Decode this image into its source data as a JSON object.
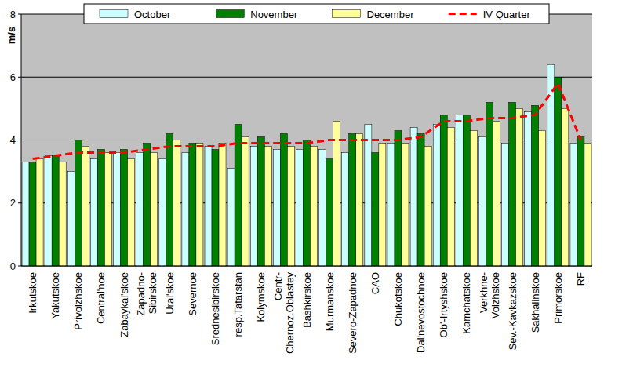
{
  "chart_data": {
    "type": "bar",
    "y_label": "m/s",
    "categories": [
      "Irkutskoe",
      "Yakutskoe",
      "Privolzhskoe",
      "Central'noe",
      "Zabaykal'skoe",
      "Zapadno-Sibirskoe",
      "Ural'skoe",
      "Severnoe",
      "Srednesibirskoe",
      "resp.Tatarstan",
      "Kolymskoe",
      "Centr-Chernoz.Oblastey",
      "Bashkirskoe",
      "Murmanskoe",
      "Severo-Zapadnoe",
      "CAO",
      "Chukotskoe",
      "Dal'nevostochnoe",
      "Ob'-Irtyshskoe",
      "Kamchatskoe",
      "Verkhne-Volzhskoe",
      "Sev.-Kavkazskoe",
      "Sakhalinskoe",
      "Primorskoe",
      "RF"
    ],
    "series": [
      {
        "name": "October",
        "type": "bar",
        "color": "#ccffff",
        "values": [
          3.3,
          3.5,
          3.0,
          3.4,
          3.6,
          3.6,
          3.4,
          3.6,
          3.8,
          3.1,
          3.8,
          3.7,
          3.7,
          3.7,
          3.6,
          4.5,
          3.9,
          4.4,
          4.5,
          4.8,
          4.1,
          3.9,
          4.9,
          6.4,
          3.9
        ]
      },
      {
        "name": "November",
        "type": "bar",
        "color": "#008000",
        "values": [
          3.3,
          3.5,
          4.0,
          3.7,
          3.7,
          3.9,
          4.2,
          3.9,
          3.7,
          4.5,
          4.1,
          4.2,
          4.0,
          3.4,
          4.2,
          3.6,
          4.3,
          4.2,
          4.8,
          4.8,
          5.2,
          5.2,
          5.1,
          6.0,
          4.1
        ]
      },
      {
        "name": "December",
        "type": "bar",
        "color": "#ffff99",
        "values": [
          3.4,
          3.3,
          3.8,
          3.6,
          3.4,
          3.6,
          4.0,
          3.9,
          3.9,
          4.1,
          3.8,
          3.8,
          3.8,
          4.6,
          4.2,
          3.9,
          3.9,
          3.8,
          4.4,
          4.3,
          4.6,
          5.0,
          4.3,
          5.0,
          3.9
        ]
      },
      {
        "name": "IV Quarter",
        "type": "line",
        "color": "#ff0000",
        "line_style": "dashed",
        "values": [
          3.4,
          3.5,
          3.6,
          3.6,
          3.6,
          3.7,
          3.8,
          3.8,
          3.8,
          3.9,
          3.9,
          3.9,
          3.9,
          4.0,
          4.0,
          4.0,
          4.0,
          4.1,
          4.6,
          4.6,
          4.7,
          4.7,
          4.8,
          5.8,
          4.0
        ]
      }
    ],
    "ylim": [
      0,
      8
    ],
    "yticks": [
      0,
      2,
      4,
      6,
      8
    ],
    "grid": true,
    "legend": "top"
  }
}
